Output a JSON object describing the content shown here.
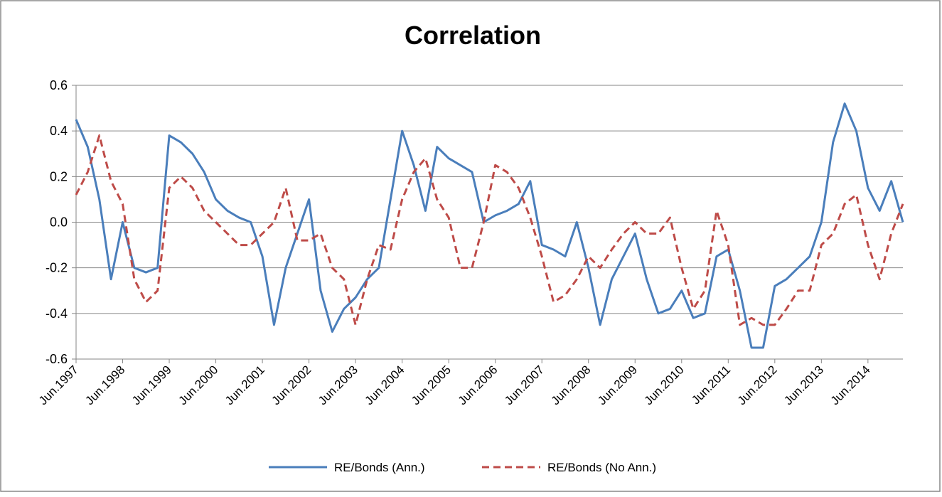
{
  "chart_data": {
    "type": "line",
    "title": "Correlation",
    "x": [
      "1997-06",
      "1997-09",
      "1997-12",
      "1998-03",
      "1998-06",
      "1998-09",
      "1998-12",
      "1999-03",
      "1999-06",
      "1999-09",
      "1999-12",
      "2000-03",
      "2000-06",
      "2000-09",
      "2000-12",
      "2001-03",
      "2001-06",
      "2001-09",
      "2001-12",
      "2002-03",
      "2002-06",
      "2002-09",
      "2002-12",
      "2003-03",
      "2003-06",
      "2003-09",
      "2003-12",
      "2004-03",
      "2004-06",
      "2004-09",
      "2004-12",
      "2005-03",
      "2005-06",
      "2005-09",
      "2005-12",
      "2006-03",
      "2006-06",
      "2006-09",
      "2006-12",
      "2007-03",
      "2007-06",
      "2007-09",
      "2007-12",
      "2008-03",
      "2008-06",
      "2008-09",
      "2008-12",
      "2009-03",
      "2009-06",
      "2009-09",
      "2009-12",
      "2010-03",
      "2010-06",
      "2010-09",
      "2010-12",
      "2011-03",
      "2011-06",
      "2011-09",
      "2011-12",
      "2012-03",
      "2012-06",
      "2012-09",
      "2012-12",
      "2013-03",
      "2013-06",
      "2013-09",
      "2013-12",
      "2014-03",
      "2014-06",
      "2014-09",
      "2014-12",
      "2015-03"
    ],
    "series": [
      {
        "name": "RE/Bonds (Ann.)",
        "color": "#4a7ebb",
        "dash": false,
        "values": [
          0.45,
          0.33,
          0.1,
          -0.25,
          0.0,
          -0.2,
          -0.22,
          -0.2,
          0.38,
          0.35,
          0.3,
          0.22,
          0.1,
          0.05,
          0.02,
          0.0,
          -0.15,
          -0.45,
          -0.2,
          -0.05,
          0.1,
          -0.3,
          -0.48,
          -0.38,
          -0.33,
          -0.25,
          -0.2,
          0.1,
          0.4,
          0.25,
          0.05,
          0.33,
          0.28,
          0.25,
          0.22,
          0.0,
          0.03,
          0.05,
          0.08,
          0.18,
          -0.1,
          -0.12,
          -0.15,
          0.0,
          -0.2,
          -0.45,
          -0.25,
          -0.15,
          -0.05,
          -0.25,
          -0.4,
          -0.38,
          -0.3,
          -0.42,
          -0.4,
          -0.15,
          -0.12,
          -0.3,
          -0.55,
          -0.55,
          -0.28,
          -0.25,
          -0.2,
          -0.15,
          0.0,
          0.35,
          0.52,
          0.4,
          0.15,
          0.05,
          0.18,
          0.0
        ]
      },
      {
        "name": "RE/Bonds (No Ann.)",
        "color": "#be4b48",
        "dash": true,
        "values": [
          0.12,
          0.22,
          0.38,
          0.18,
          0.08,
          -0.25,
          -0.35,
          -0.3,
          0.15,
          0.2,
          0.15,
          0.05,
          0.0,
          -0.05,
          -0.1,
          -0.1,
          -0.05,
          0.0,
          0.15,
          -0.08,
          -0.08,
          -0.05,
          -0.2,
          -0.25,
          -0.45,
          -0.25,
          -0.1,
          -0.12,
          0.1,
          0.22,
          0.28,
          0.1,
          0.02,
          -0.2,
          -0.2,
          0.0,
          0.25,
          0.22,
          0.15,
          0.02,
          -0.15,
          -0.35,
          -0.32,
          -0.25,
          -0.15,
          -0.2,
          -0.12,
          -0.05,
          0.0,
          -0.05,
          -0.05,
          0.02,
          -0.2,
          -0.38,
          -0.3,
          0.05,
          -0.1,
          -0.45,
          -0.42,
          -0.45,
          -0.45,
          -0.38,
          -0.3,
          -0.3,
          -0.1,
          -0.05,
          0.08,
          0.12,
          -0.1,
          -0.25,
          -0.05,
          0.08
        ]
      }
    ],
    "xlim": [
      "1997-06",
      "2015-03"
    ],
    "xticks": [
      {
        "value": "1997-06",
        "label": "Jun.1997"
      },
      {
        "value": "1998-06",
        "label": "Jun.1998"
      },
      {
        "value": "1999-06",
        "label": "Jun.1999"
      },
      {
        "value": "2000-06",
        "label": "Jun.2000"
      },
      {
        "value": "2001-06",
        "label": "Jun.2001"
      },
      {
        "value": "2002-06",
        "label": "Jun.2002"
      },
      {
        "value": "2003-06",
        "label": "Jun.2003"
      },
      {
        "value": "2004-06",
        "label": "Jun.2004"
      },
      {
        "value": "2005-06",
        "label": "Jun.2005"
      },
      {
        "value": "2006-06",
        "label": "Jun.2006"
      },
      {
        "value": "2007-06",
        "label": "Jun.2007"
      },
      {
        "value": "2008-06",
        "label": "Jun.2008"
      },
      {
        "value": "2009-06",
        "label": "Jun.2009"
      },
      {
        "value": "2010-06",
        "label": "Jun.2010"
      },
      {
        "value": "2011-06",
        "label": "Jun.2011"
      },
      {
        "value": "2012-06",
        "label": "Jun.2012"
      },
      {
        "value": "2013-06",
        "label": "Jun.2013"
      },
      {
        "value": "2014-06",
        "label": "Jun.2014"
      }
    ],
    "ylim": [
      -0.6,
      0.6
    ],
    "yticks": [
      {
        "value": 0.6,
        "label": "0.6"
      },
      {
        "value": 0.4,
        "label": "0.4"
      },
      {
        "value": 0.2,
        "label": "0.2"
      },
      {
        "value": 0,
        "label": "0.0"
      },
      {
        "value": -0.2,
        "label": "-0.2"
      },
      {
        "value": -0.4,
        "label": "-0.4"
      },
      {
        "value": -0.6,
        "label": "-0.6"
      }
    ],
    "grid": true,
    "legend": "bottom"
  }
}
